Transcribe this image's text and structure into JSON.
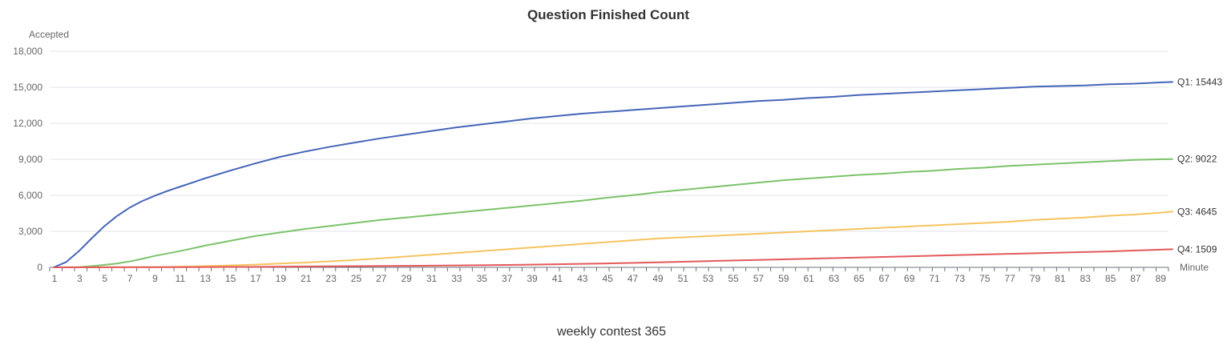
{
  "chart_data": {
    "type": "line",
    "title": "Question Finished Count",
    "xlabel": "Minute",
    "ylabel": "Accepted",
    "caption": "weekly contest 365",
    "ylim": [
      0,
      18000
    ],
    "yticks": [
      0,
      3000,
      6000,
      9000,
      12000,
      15000,
      18000
    ],
    "ytick_labels": [
      "0",
      "3,000",
      "6,000",
      "9,000",
      "12,000",
      "15,000",
      "18,000"
    ],
    "xlim": [
      1,
      90
    ],
    "xtick_labels": [
      "1",
      "3",
      "5",
      "7",
      "9",
      "11",
      "13",
      "15",
      "17",
      "19",
      "21",
      "23",
      "25",
      "27",
      "29",
      "31",
      "33",
      "35",
      "37",
      "39",
      "41",
      "43",
      "45",
      "47",
      "49",
      "51",
      "53",
      "55",
      "57",
      "59",
      "61",
      "63",
      "65",
      "67",
      "69",
      "71",
      "73",
      "75",
      "77",
      "79",
      "81",
      "83",
      "85",
      "87",
      "89"
    ],
    "grid": true,
    "legend": "end-of-line labels",
    "series": [
      {
        "name": "Q1",
        "end_label": "Q1: 15443",
        "color": "#4565b8",
        "points": [
          [
            1,
            0
          ],
          [
            2,
            450
          ],
          [
            3,
            1350
          ],
          [
            4,
            2400
          ],
          [
            5,
            3400
          ],
          [
            6,
            4250
          ],
          [
            7,
            4950
          ],
          [
            8,
            5500
          ],
          [
            9,
            5950
          ],
          [
            10,
            6350
          ],
          [
            11,
            6700
          ],
          [
            12,
            7050
          ],
          [
            13,
            7400
          ],
          [
            15,
            8050
          ],
          [
            17,
            8650
          ],
          [
            19,
            9200
          ],
          [
            21,
            9650
          ],
          [
            23,
            10050
          ],
          [
            25,
            10400
          ],
          [
            27,
            10750
          ],
          [
            29,
            11050
          ],
          [
            31,
            11350
          ],
          [
            33,
            11650
          ],
          [
            35,
            11900
          ],
          [
            37,
            12150
          ],
          [
            39,
            12400
          ],
          [
            41,
            12600
          ],
          [
            43,
            12800
          ],
          [
            45,
            12950
          ],
          [
            47,
            13100
          ],
          [
            49,
            13250
          ],
          [
            51,
            13400
          ],
          [
            53,
            13550
          ],
          [
            55,
            13700
          ],
          [
            57,
            13850
          ],
          [
            59,
            13950
          ],
          [
            61,
            14100
          ],
          [
            63,
            14200
          ],
          [
            65,
            14350
          ],
          [
            67,
            14450
          ],
          [
            69,
            14550
          ],
          [
            71,
            14650
          ],
          [
            73,
            14750
          ],
          [
            75,
            14850
          ],
          [
            77,
            14950
          ],
          [
            79,
            15050
          ],
          [
            81,
            15100
          ],
          [
            83,
            15150
          ],
          [
            85,
            15250
          ],
          [
            87,
            15300
          ],
          [
            89,
            15400
          ],
          [
            90,
            15443
          ]
        ]
      },
      {
        "name": "Q2",
        "end_label": "Q2: 9022",
        "color": "#7cc36a",
        "points": [
          [
            1,
            0
          ],
          [
            3,
            20
          ],
          [
            4,
            100
          ],
          [
            5,
            200
          ],
          [
            6,
            320
          ],
          [
            7,
            480
          ],
          [
            8,
            700
          ],
          [
            9,
            950
          ],
          [
            11,
            1350
          ],
          [
            13,
            1800
          ],
          [
            15,
            2200
          ],
          [
            17,
            2600
          ],
          [
            19,
            2900
          ],
          [
            21,
            3200
          ],
          [
            23,
            3450
          ],
          [
            25,
            3700
          ],
          [
            27,
            3950
          ],
          [
            29,
            4150
          ],
          [
            31,
            4350
          ],
          [
            33,
            4550
          ],
          [
            35,
            4750
          ],
          [
            37,
            4950
          ],
          [
            39,
            5150
          ],
          [
            41,
            5350
          ],
          [
            43,
            5550
          ],
          [
            45,
            5800
          ],
          [
            47,
            6000
          ],
          [
            49,
            6250
          ],
          [
            51,
            6450
          ],
          [
            53,
            6650
          ],
          [
            55,
            6850
          ],
          [
            57,
            7050
          ],
          [
            59,
            7250
          ],
          [
            61,
            7400
          ],
          [
            63,
            7550
          ],
          [
            65,
            7700
          ],
          [
            67,
            7800
          ],
          [
            69,
            7950
          ],
          [
            71,
            8050
          ],
          [
            73,
            8200
          ],
          [
            75,
            8300
          ],
          [
            77,
            8450
          ],
          [
            79,
            8550
          ],
          [
            81,
            8650
          ],
          [
            83,
            8750
          ],
          [
            85,
            8850
          ],
          [
            87,
            8950
          ],
          [
            89,
            9000
          ],
          [
            90,
            9022
          ]
        ]
      },
      {
        "name": "Q3",
        "end_label": "Q3: 4645",
        "color": "#f6c35f",
        "points": [
          [
            1,
            0
          ],
          [
            9,
            20
          ],
          [
            11,
            50
          ],
          [
            13,
            100
          ],
          [
            15,
            160
          ],
          [
            17,
            230
          ],
          [
            19,
            320
          ],
          [
            21,
            400
          ],
          [
            23,
            500
          ],
          [
            25,
            620
          ],
          [
            27,
            750
          ],
          [
            29,
            900
          ],
          [
            31,
            1050
          ],
          [
            33,
            1200
          ],
          [
            35,
            1350
          ],
          [
            37,
            1500
          ],
          [
            39,
            1650
          ],
          [
            41,
            1800
          ],
          [
            43,
            1950
          ],
          [
            45,
            2100
          ],
          [
            47,
            2250
          ],
          [
            49,
            2400
          ],
          [
            51,
            2500
          ],
          [
            53,
            2600
          ],
          [
            55,
            2700
          ],
          [
            57,
            2800
          ],
          [
            59,
            2900
          ],
          [
            61,
            3000
          ],
          [
            63,
            3100
          ],
          [
            65,
            3200
          ],
          [
            67,
            3300
          ],
          [
            69,
            3400
          ],
          [
            71,
            3500
          ],
          [
            73,
            3600
          ],
          [
            75,
            3700
          ],
          [
            77,
            3800
          ],
          [
            79,
            3950
          ],
          [
            81,
            4050
          ],
          [
            83,
            4150
          ],
          [
            85,
            4300
          ],
          [
            87,
            4400
          ],
          [
            89,
            4550
          ],
          [
            90,
            4645
          ]
        ]
      },
      {
        "name": "Q4",
        "end_label": "Q4: 1509",
        "color": "#e3595a",
        "points": [
          [
            1,
            0
          ],
          [
            11,
            15
          ],
          [
            17,
            40
          ],
          [
            21,
            70
          ],
          [
            25,
            100
          ],
          [
            29,
            130
          ],
          [
            33,
            160
          ],
          [
            37,
            200
          ],
          [
            41,
            260
          ],
          [
            45,
            330
          ],
          [
            49,
            420
          ],
          [
            53,
            520
          ],
          [
            57,
            620
          ],
          [
            61,
            720
          ],
          [
            65,
            820
          ],
          [
            69,
            920
          ],
          [
            73,
            1030
          ],
          [
            77,
            1130
          ],
          [
            81,
            1230
          ],
          [
            85,
            1330
          ],
          [
            89,
            1470
          ],
          [
            90,
            1509
          ]
        ]
      }
    ]
  }
}
